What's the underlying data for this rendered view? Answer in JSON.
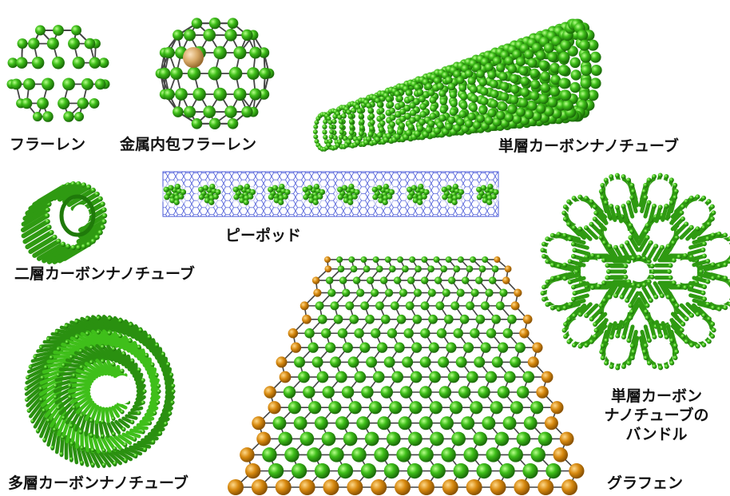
{
  "colors": {
    "carbon": "#3fbf1a",
    "carbon_dark": "#1f7a0a",
    "edge": "#d88a10",
    "metal": "#d7a866",
    "bond": "#444444",
    "tube_mesh": "#4a5ad8"
  },
  "items": [
    {
      "label": "フラーレン",
      "icon": "fullerene"
    },
    {
      "label": "金属内包フラーレン",
      "icon": "metallofullerene"
    },
    {
      "label": "単層カーボンナノチューブ",
      "icon": "single-wall-nanotube"
    },
    {
      "label": "ピーポッド",
      "icon": "peapod"
    },
    {
      "label": "二層カーボンナノチューブ",
      "icon": "double-wall-nanotube"
    },
    {
      "label": "多層カーボンナノチューブ",
      "icon": "multi-wall-nanotube"
    },
    {
      "label": "グラフェン",
      "icon": "graphene"
    },
    {
      "lines": [
        "単層カーボン",
        "ナノチューブの",
        "バンドル"
      ],
      "icon": "nanotube-bundle"
    }
  ]
}
